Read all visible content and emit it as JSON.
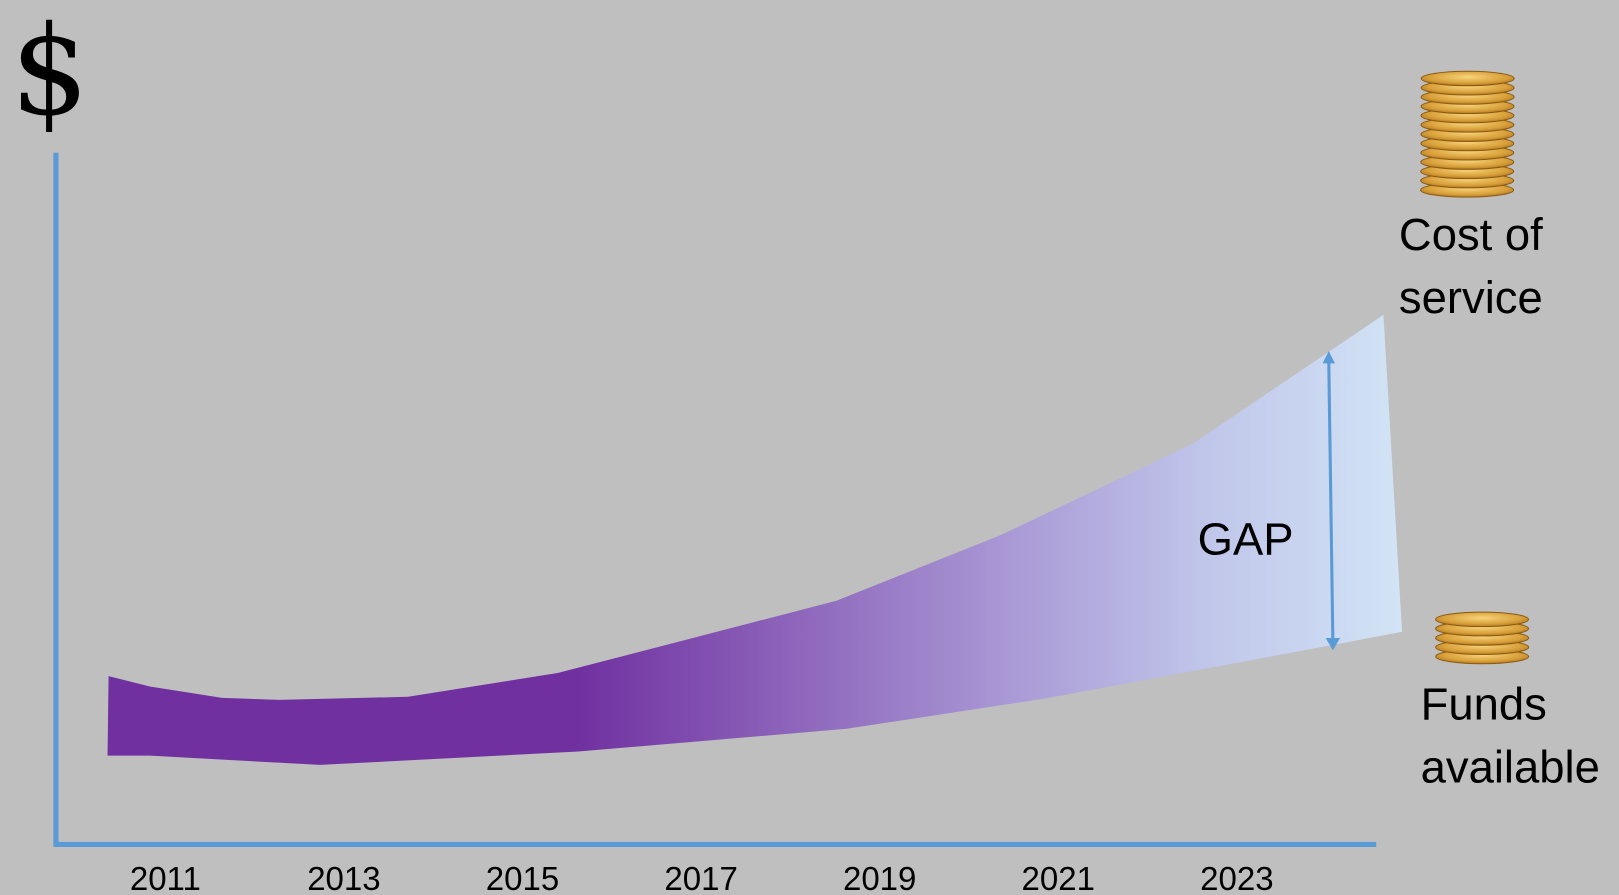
{
  "y_axis_label": "$",
  "x_axis": {
    "labels": [
      "2011",
      "2013",
      "2015",
      "2017",
      "2019",
      "2021",
      "2023"
    ]
  },
  "labels": {
    "cost": [
      "Cost of",
      "service"
    ],
    "funds": [
      "Funds",
      "available"
    ],
    "gap": "GAP"
  }
}
